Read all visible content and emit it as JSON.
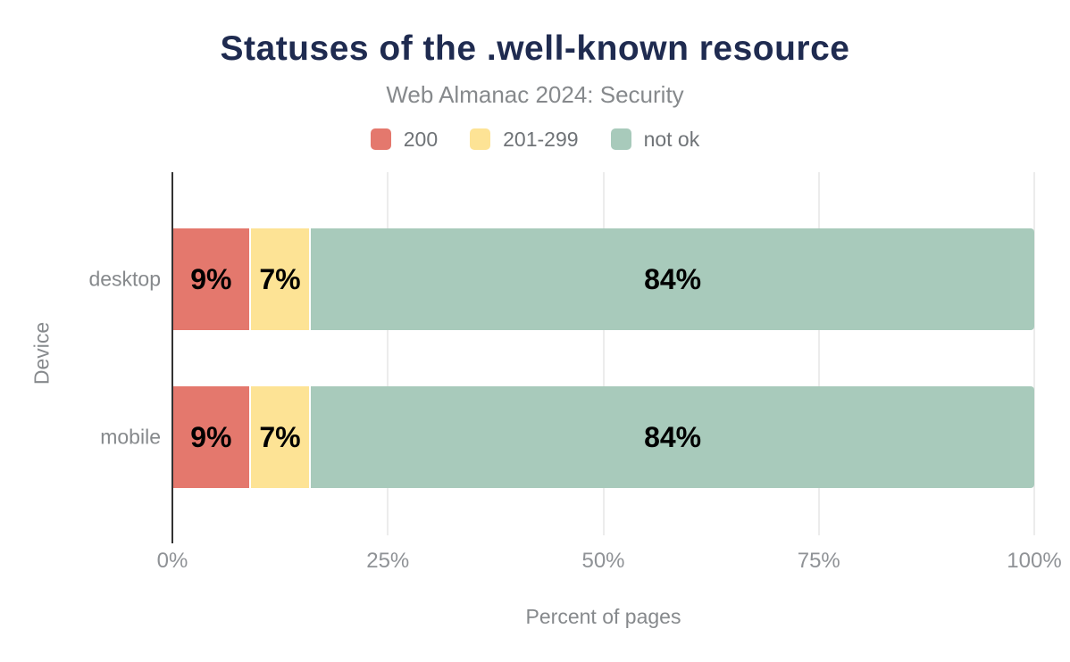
{
  "colors": {
    "background": "#ffffff",
    "title": "#1f2b50",
    "subtitle": "#86898c",
    "legend_text": "#6f7377",
    "tick_text": "#8f9296",
    "axis_line": "#333333",
    "gridline": "#ececec",
    "value_label": "#000000"
  },
  "chart_data": {
    "type": "bar",
    "orientation": "horizontal",
    "stacked": true,
    "title": "Statuses of the .well-known resource",
    "subtitle": "Web Almanac 2024: Security",
    "categories": [
      "desktop",
      "mobile"
    ],
    "series": [
      {
        "name": "200",
        "color": "#e4786d",
        "values": [
          9,
          9
        ]
      },
      {
        "name": "201-299",
        "color": "#fde395",
        "values": [
          7,
          7
        ]
      },
      {
        "name": "not ok",
        "color": "#a8cabb",
        "values": [
          84,
          84
        ]
      }
    ],
    "value_suffix": "%",
    "data_labels": [
      [
        "9%",
        "7%",
        "84%"
      ],
      [
        "9%",
        "7%",
        "84%"
      ]
    ],
    "xlabel": "Percent of pages",
    "ylabel": "Device",
    "xlim": [
      0,
      100
    ],
    "xticks": [
      {
        "value": 0,
        "label": "0%"
      },
      {
        "value": 25,
        "label": "25%"
      },
      {
        "value": 50,
        "label": "50%"
      },
      {
        "value": 75,
        "label": "75%"
      },
      {
        "value": 100,
        "label": "100%"
      }
    ],
    "grid": "vertical",
    "legend_position": "top"
  }
}
